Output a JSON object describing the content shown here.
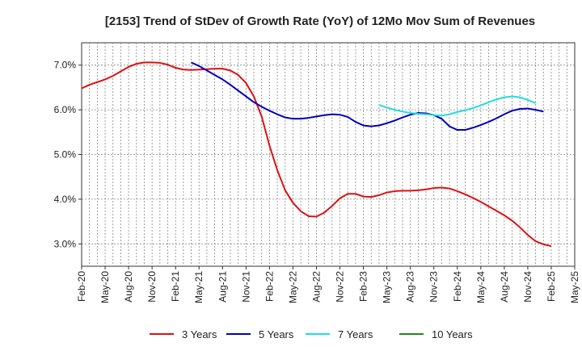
{
  "chart_data": {
    "type": "line",
    "title": "[2153]  Trend of StDev of Growth Rate (YoY) of 12Mo Mov Sum of Revenues",
    "xlabel": "",
    "ylabel": "",
    "x_start": "2020-02",
    "x_end": "2025-05",
    "ylim": [
      2.5,
      7.5
    ],
    "yticks": [
      3.0,
      4.0,
      5.0,
      6.0,
      7.0
    ],
    "ytick_labels": [
      "3.0%",
      "4.0%",
      "5.0%",
      "6.0%",
      "7.0%"
    ],
    "x_tick_labels": [
      "Feb-20",
      "May-20",
      "Aug-20",
      "Nov-20",
      "Feb-21",
      "May-21",
      "Aug-21",
      "Nov-21",
      "Feb-22",
      "May-22",
      "Aug-22",
      "Nov-22",
      "Feb-23",
      "May-23",
      "Aug-23",
      "Nov-23",
      "Feb-24",
      "May-24",
      "Aug-24",
      "Nov-24",
      "Feb-25",
      "May-25"
    ],
    "grid": true,
    "legend_position": "bottom",
    "series": [
      {
        "name": "3 Years",
        "color": "#dd1111",
        "start": "2020-02",
        "values": [
          6.48,
          6.56,
          6.62,
          6.68,
          6.76,
          6.86,
          6.96,
          7.03,
          7.06,
          7.06,
          7.05,
          7.01,
          6.94,
          6.9,
          6.89,
          6.9,
          6.91,
          6.92,
          6.92,
          6.88,
          6.78,
          6.6,
          6.3,
          5.85,
          5.2,
          4.65,
          4.2,
          3.92,
          3.73,
          3.62,
          3.61,
          3.7,
          3.85,
          4.02,
          4.12,
          4.12,
          4.06,
          4.05,
          4.09,
          4.15,
          4.18,
          4.19,
          4.19,
          4.2,
          4.22,
          4.25,
          4.26,
          4.24,
          4.18,
          4.11,
          4.03,
          3.94,
          3.84,
          3.74,
          3.64,
          3.52,
          3.37,
          3.2,
          3.06,
          2.99,
          2.95
        ]
      },
      {
        "name": "5 Years",
        "color": "#0000bb",
        "start": "2021-04",
        "values": [
          7.06,
          6.98,
          6.88,
          6.78,
          6.68,
          6.56,
          6.43,
          6.3,
          6.17,
          6.07,
          5.98,
          5.9,
          5.83,
          5.8,
          5.8,
          5.82,
          5.85,
          5.88,
          5.9,
          5.89,
          5.84,
          5.73,
          5.65,
          5.63,
          5.65,
          5.7,
          5.76,
          5.83,
          5.89,
          5.93,
          5.92,
          5.88,
          5.8,
          5.63,
          5.55,
          5.55,
          5.6,
          5.66,
          5.73,
          5.81,
          5.9,
          5.98,
          6.02,
          6.03,
          6.0,
          5.96
        ]
      },
      {
        "name": "7 Years",
        "color": "#22dddd",
        "start": "2023-04",
        "values": [
          6.11,
          6.05,
          6.0,
          5.96,
          5.93,
          5.91,
          5.9,
          5.88,
          5.87,
          5.9,
          5.95,
          5.99,
          6.04,
          6.1,
          6.17,
          6.23,
          6.28,
          6.3,
          6.28,
          6.22,
          6.15
        ]
      },
      {
        "name": "10 Years",
        "color": "#228822",
        "start": "2020-02",
        "values": []
      }
    ]
  }
}
